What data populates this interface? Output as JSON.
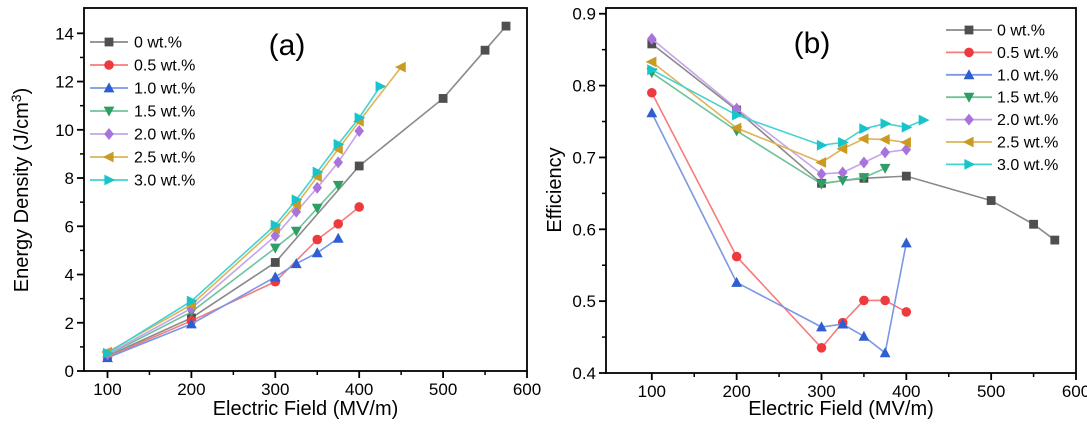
{
  "figure": {
    "background": "#ffffff",
    "axis_color": "#000000"
  },
  "chart_data": [
    {
      "type": "line",
      "panel_label": "(a)",
      "xlabel": "Electric Field (MV/m)",
      "ylabel": "Energy Density (J/cm³)",
      "xlim": [
        72,
        600
      ],
      "ylim": [
        0,
        15.05
      ],
      "x_ticks": [
        100,
        200,
        300,
        400,
        500,
        600
      ],
      "x_minor_step": 50,
      "y_ticks": [
        0,
        2,
        4,
        6,
        8,
        10,
        12,
        14
      ],
      "y_minor_step": 1,
      "y_tick_decimals": 0,
      "grid": false,
      "legend_position": "top-left",
      "series": [
        {
          "name": "0 wt.%",
          "marker": "square",
          "marker_color": "#4f4f4f",
          "line_color": "#8a8a8a",
          "x": [
            100,
            200,
            300,
            400,
            500,
            550,
            575
          ],
          "y": [
            0.62,
            2.2,
            4.5,
            8.5,
            11.3,
            13.3,
            14.3
          ]
        },
        {
          "name": "0.5 wt.%",
          "marker": "circle",
          "marker_color": "#ee3a3e",
          "line_color": "#f57c7c",
          "x": [
            100,
            200,
            300,
            350,
            375,
            400
          ],
          "y": [
            0.58,
            2.08,
            3.7,
            5.45,
            6.1,
            6.8
          ]
        },
        {
          "name": "1.0 wt.%",
          "marker": "triangle-up",
          "marker_color": "#2e5ed1",
          "line_color": "#7b97e6",
          "x": [
            100,
            200,
            300,
            325,
            350,
            375
          ],
          "y": [
            0.55,
            1.95,
            3.9,
            4.45,
            4.9,
            5.5
          ]
        },
        {
          "name": "1.5 wt.%",
          "marker": "triangle-down",
          "marker_color": "#2f9e64",
          "line_color": "#6fc49a",
          "x": [
            100,
            200,
            300,
            325,
            350,
            375
          ],
          "y": [
            0.66,
            2.45,
            5.1,
            5.8,
            6.75,
            7.7
          ]
        },
        {
          "name": "2.0 wt.%",
          "marker": "diamond",
          "marker_color": "#a873dd",
          "line_color": "#c6a4ea",
          "x": [
            100,
            200,
            300,
            325,
            350,
            375,
            400
          ],
          "y": [
            0.7,
            2.6,
            5.6,
            6.6,
            7.6,
            8.65,
            9.95
          ]
        },
        {
          "name": "2.5 wt.%",
          "marker": "triangle-left",
          "marker_color": "#cb9a22",
          "line_color": "#ddb45a",
          "x": [
            100,
            200,
            300,
            325,
            350,
            375,
            400,
            450
          ],
          "y": [
            0.78,
            2.75,
            5.9,
            6.9,
            8.05,
            9.2,
            10.35,
            12.6
          ]
        },
        {
          "name": "3.0 wt.%",
          "marker": "triangle-right",
          "marker_color": "#16c4c9",
          "line_color": "#43d2d2",
          "x": [
            100,
            200,
            300,
            325,
            350,
            375,
            400,
            425
          ],
          "y": [
            0.74,
            2.9,
            6.05,
            7.1,
            8.25,
            9.4,
            10.5,
            11.8
          ]
        }
      ]
    },
    {
      "type": "line",
      "panel_label": "(b)",
      "xlabel": "Electric Field (MV/m)",
      "ylabel": "Efficiency",
      "xlim": [
        46,
        600
      ],
      "ylim": [
        0.4,
        0.908
      ],
      "x_ticks": [
        100,
        200,
        300,
        400,
        500,
        600
      ],
      "x_minor_step": 50,
      "y_ticks": [
        0.4,
        0.5,
        0.6,
        0.7,
        0.8,
        0.9
      ],
      "y_minor_step": 0.05,
      "y_tick_decimals": 1,
      "grid": false,
      "legend_position": "top-right",
      "series": [
        {
          "name": "0 wt.%",
          "marker": "square",
          "marker_color": "#4f4f4f",
          "line_color": "#8a8a8a",
          "x": [
            100,
            200,
            300,
            350,
            400,
            500,
            550,
            575
          ],
          "y": [
            0.858,
            0.766,
            0.664,
            0.671,
            0.674,
            0.64,
            0.607,
            0.585
          ]
        },
        {
          "name": "0.5 wt.%",
          "marker": "circle",
          "marker_color": "#ee3a3e",
          "line_color": "#f57c7c",
          "x": [
            100,
            200,
            300,
            325,
            350,
            375,
            400
          ],
          "y": [
            0.79,
            0.562,
            0.435,
            0.47,
            0.501,
            0.501,
            0.485
          ]
        },
        {
          "name": "1.0 wt.%",
          "marker": "triangle-up",
          "marker_color": "#2e5ed1",
          "line_color": "#7b97e6",
          "x": [
            100,
            200,
            300,
            325,
            350,
            375,
            400
          ],
          "y": [
            0.762,
            0.526,
            0.464,
            0.468,
            0.451,
            0.428,
            0.581
          ]
        },
        {
          "name": "1.5 wt.%",
          "marker": "triangle-down",
          "marker_color": "#2f9e64",
          "line_color": "#6fc49a",
          "x": [
            100,
            200,
            300,
            325,
            350,
            375
          ],
          "y": [
            0.818,
            0.737,
            0.663,
            0.668,
            0.672,
            0.685
          ]
        },
        {
          "name": "2.0 wt.%",
          "marker": "diamond",
          "marker_color": "#a873dd",
          "line_color": "#c6a4ea",
          "x": [
            100,
            200,
            300,
            325,
            350,
            375,
            400
          ],
          "y": [
            0.865,
            0.768,
            0.677,
            0.679,
            0.693,
            0.707,
            0.711
          ]
        },
        {
          "name": "2.5 wt.%",
          "marker": "triangle-left",
          "marker_color": "#cb9a22",
          "line_color": "#ddb45a",
          "x": [
            100,
            200,
            300,
            325,
            350,
            375,
            400
          ],
          "y": [
            0.833,
            0.741,
            0.693,
            0.712,
            0.726,
            0.725,
            0.721
          ]
        },
        {
          "name": "3.0 wt.%",
          "marker": "triangle-right",
          "marker_color": "#16c4c9",
          "line_color": "#43d2d2",
          "x": [
            100,
            200,
            300,
            325,
            350,
            375,
            400,
            420
          ],
          "y": [
            0.822,
            0.759,
            0.717,
            0.721,
            0.74,
            0.747,
            0.742,
            0.752
          ]
        }
      ]
    }
  ]
}
